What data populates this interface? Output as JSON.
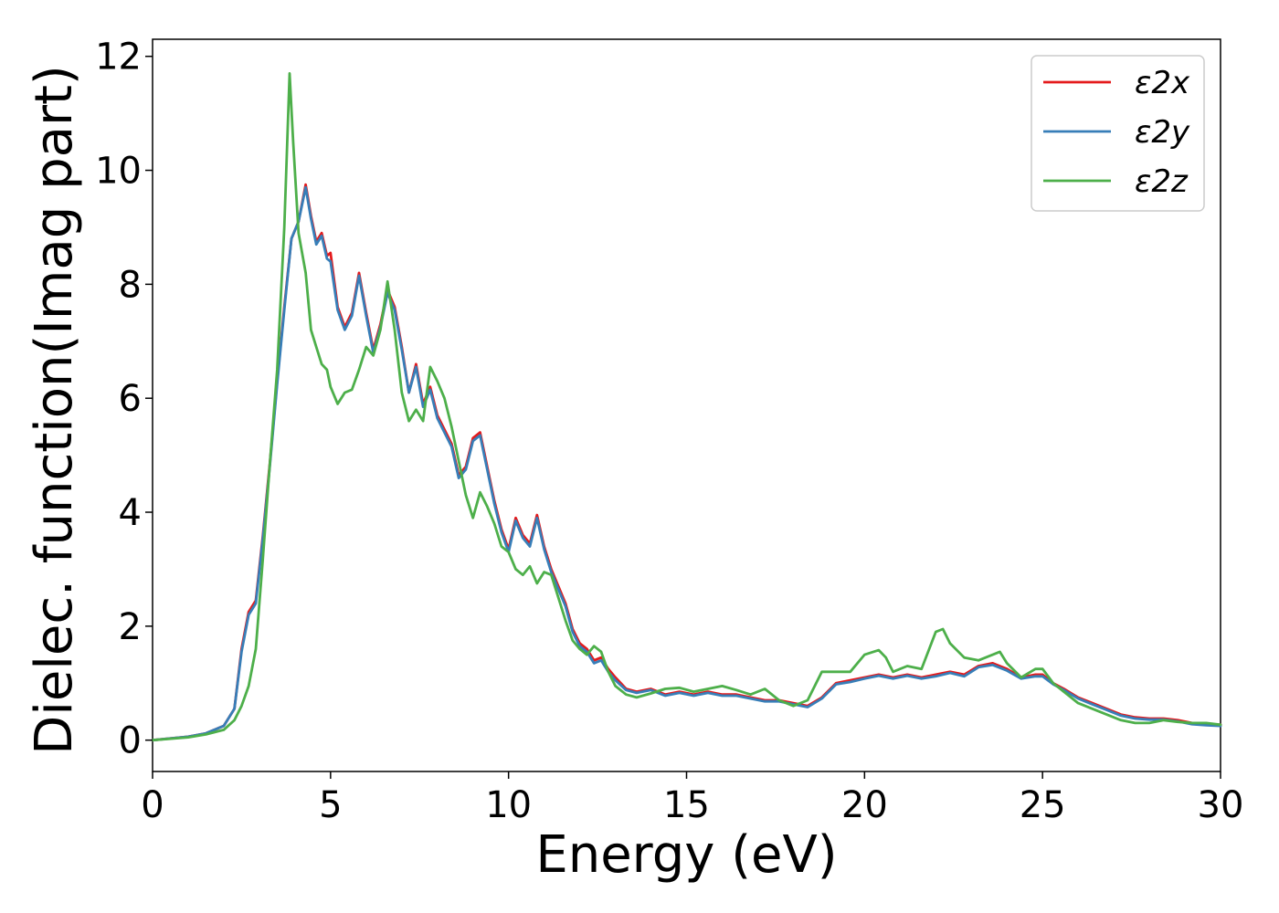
{
  "chart_data": {
    "type": "line",
    "xlabel": "Energy (eV)",
    "ylabel": "Dielec. function(Imag part)",
    "xlim": [
      0,
      30
    ],
    "ylim": [
      -0.55,
      12.3
    ],
    "xticks": [
      0,
      5,
      10,
      15,
      20,
      25,
      30
    ],
    "yticks": [
      0,
      2,
      4,
      6,
      8,
      10,
      12
    ],
    "legend_position": "top-right",
    "grid": false,
    "series": [
      {
        "name": "ε2x",
        "color": "#e41a1c",
        "x": [
          0,
          1,
          1.5,
          2,
          2.3,
          2.5,
          2.7,
          2.9,
          3.1,
          3.3,
          3.5,
          3.7,
          3.9,
          4.1,
          4.3,
          4.45,
          4.6,
          4.75,
          4.9,
          5.0,
          5.2,
          5.4,
          5.6,
          5.8,
          6.0,
          6.2,
          6.4,
          6.6,
          6.8,
          7.0,
          7.2,
          7.4,
          7.6,
          7.8,
          8.0,
          8.2,
          8.4,
          8.6,
          8.8,
          9.0,
          9.2,
          9.4,
          9.6,
          9.8,
          10.0,
          10.2,
          10.4,
          10.6,
          10.8,
          11.0,
          11.2,
          11.4,
          11.6,
          11.8,
          12.0,
          12.2,
          12.4,
          12.6,
          12.8,
          13.0,
          13.3,
          13.6,
          14.0,
          14.4,
          14.8,
          15.2,
          15.6,
          16.0,
          16.4,
          16.8,
          17.2,
          17.6,
          18.0,
          18.4,
          18.8,
          19.2,
          19.6,
          20.0,
          20.4,
          20.8,
          21.2,
          21.6,
          22.0,
          22.4,
          22.8,
          23.2,
          23.6,
          24.0,
          24.4,
          24.8,
          25.0,
          25.3,
          25.6,
          26.0,
          26.4,
          26.8,
          27.2,
          27.6,
          28.0,
          28.4,
          28.8,
          29.2,
          29.6,
          30
        ],
        "values": [
          0,
          0.06,
          0.12,
          0.25,
          0.55,
          1.6,
          2.25,
          2.45,
          3.6,
          4.9,
          6.3,
          7.6,
          8.8,
          9.1,
          9.75,
          9.2,
          8.75,
          8.9,
          8.5,
          8.55,
          7.6,
          7.25,
          7.5,
          8.2,
          7.5,
          6.85,
          7.3,
          7.9,
          7.6,
          6.9,
          6.1,
          6.6,
          5.9,
          6.2,
          5.7,
          5.45,
          5.2,
          4.65,
          4.8,
          5.3,
          5.4,
          4.8,
          4.2,
          3.7,
          3.35,
          3.9,
          3.6,
          3.45,
          3.95,
          3.4,
          3.0,
          2.7,
          2.4,
          1.95,
          1.7,
          1.6,
          1.4,
          1.45,
          1.25,
          1.1,
          0.9,
          0.85,
          0.9,
          0.8,
          0.85,
          0.8,
          0.85,
          0.8,
          0.8,
          0.75,
          0.7,
          0.7,
          0.65,
          0.6,
          0.75,
          1.0,
          1.05,
          1.1,
          1.15,
          1.1,
          1.15,
          1.1,
          1.15,
          1.2,
          1.15,
          1.3,
          1.35,
          1.25,
          1.1,
          1.15,
          1.15,
          1.0,
          0.9,
          0.75,
          0.65,
          0.55,
          0.45,
          0.4,
          0.38,
          0.38,
          0.35,
          0.3,
          0.28,
          0.27
        ]
      },
      {
        "name": "ε2y",
        "color": "#377eb8",
        "x": [
          0,
          1,
          1.5,
          2,
          2.3,
          2.5,
          2.7,
          2.9,
          3.1,
          3.3,
          3.5,
          3.7,
          3.9,
          4.1,
          4.3,
          4.45,
          4.6,
          4.75,
          4.9,
          5.0,
          5.2,
          5.4,
          5.6,
          5.8,
          6.0,
          6.2,
          6.4,
          6.6,
          6.8,
          7.0,
          7.2,
          7.4,
          7.6,
          7.8,
          8.0,
          8.2,
          8.4,
          8.6,
          8.8,
          9.0,
          9.2,
          9.4,
          9.6,
          9.8,
          10.0,
          10.2,
          10.4,
          10.6,
          10.8,
          11.0,
          11.2,
          11.4,
          11.6,
          11.8,
          12.0,
          12.2,
          12.4,
          12.6,
          12.8,
          13.0,
          13.3,
          13.6,
          14.0,
          14.4,
          14.8,
          15.2,
          15.6,
          16.0,
          16.4,
          16.8,
          17.2,
          17.6,
          18.0,
          18.4,
          18.8,
          19.2,
          19.6,
          20.0,
          20.4,
          20.8,
          21.2,
          21.6,
          22.0,
          22.4,
          22.8,
          23.2,
          23.6,
          24.0,
          24.4,
          24.8,
          25.0,
          25.3,
          25.6,
          26.0,
          26.4,
          26.8,
          27.2,
          27.6,
          28.0,
          28.4,
          28.8,
          29.2,
          29.6,
          30
        ],
        "values": [
          0,
          0.06,
          0.12,
          0.25,
          0.55,
          1.55,
          2.2,
          2.4,
          3.55,
          4.85,
          6.25,
          7.55,
          8.8,
          9.1,
          9.7,
          9.15,
          8.7,
          8.85,
          8.45,
          8.4,
          7.55,
          7.2,
          7.45,
          8.15,
          7.45,
          6.8,
          7.25,
          7.85,
          7.55,
          6.85,
          6.1,
          6.55,
          5.85,
          6.15,
          5.65,
          5.4,
          5.15,
          4.6,
          4.75,
          5.25,
          5.35,
          4.75,
          4.15,
          3.65,
          3.3,
          3.85,
          3.55,
          3.4,
          3.9,
          3.35,
          2.95,
          2.65,
          2.35,
          1.9,
          1.65,
          1.55,
          1.35,
          1.4,
          1.2,
          1.05,
          0.88,
          0.83,
          0.88,
          0.78,
          0.83,
          0.78,
          0.83,
          0.78,
          0.78,
          0.73,
          0.68,
          0.68,
          0.63,
          0.58,
          0.73,
          0.98,
          1.02,
          1.08,
          1.13,
          1.08,
          1.13,
          1.08,
          1.12,
          1.18,
          1.12,
          1.28,
          1.32,
          1.22,
          1.08,
          1.12,
          1.12,
          0.98,
          0.88,
          0.73,
          0.63,
          0.53,
          0.43,
          0.38,
          0.36,
          0.36,
          0.33,
          0.28,
          0.26,
          0.25
        ]
      },
      {
        "name": "ε2z",
        "color": "#4daf4a",
        "x": [
          0,
          1,
          1.5,
          2,
          2.3,
          2.5,
          2.7,
          2.9,
          3.1,
          3.3,
          3.5,
          3.7,
          3.85,
          3.95,
          4.1,
          4.3,
          4.45,
          4.6,
          4.75,
          4.9,
          5.0,
          5.2,
          5.4,
          5.6,
          5.8,
          6.0,
          6.2,
          6.4,
          6.6,
          6.8,
          7.0,
          7.2,
          7.4,
          7.6,
          7.8,
          8.0,
          8.2,
          8.4,
          8.6,
          8.8,
          9.0,
          9.2,
          9.4,
          9.6,
          9.8,
          10.0,
          10.2,
          10.4,
          10.6,
          10.8,
          11.0,
          11.2,
          11.4,
          11.6,
          11.8,
          12.0,
          12.2,
          12.4,
          12.6,
          12.8,
          13.0,
          13.3,
          13.6,
          14.0,
          14.4,
          14.8,
          15.2,
          15.6,
          16.0,
          16.4,
          16.8,
          17.2,
          17.6,
          18.0,
          18.4,
          18.8,
          19.2,
          19.6,
          20.0,
          20.4,
          20.6,
          20.8,
          21.2,
          21.6,
          22.0,
          22.2,
          22.4,
          22.8,
          23.2,
          23.6,
          23.8,
          24.0,
          24.4,
          24.8,
          25.0,
          25.3,
          25.6,
          26.0,
          26.4,
          26.8,
          27.2,
          27.6,
          28.0,
          28.4,
          28.8,
          29.2,
          29.6,
          30
        ],
        "values": [
          0,
          0.05,
          0.1,
          0.18,
          0.35,
          0.6,
          0.95,
          1.6,
          3.2,
          4.9,
          6.5,
          9.0,
          11.7,
          10.5,
          8.9,
          8.2,
          7.2,
          6.9,
          6.6,
          6.5,
          6.2,
          5.9,
          6.1,
          6.15,
          6.5,
          6.9,
          6.75,
          7.2,
          8.05,
          7.2,
          6.1,
          5.6,
          5.8,
          5.6,
          6.55,
          6.3,
          6.0,
          5.5,
          4.9,
          4.3,
          3.9,
          4.35,
          4.1,
          3.8,
          3.4,
          3.3,
          3.0,
          2.9,
          3.05,
          2.75,
          2.95,
          2.9,
          2.5,
          2.1,
          1.75,
          1.6,
          1.5,
          1.65,
          1.55,
          1.2,
          0.95,
          0.8,
          0.75,
          0.82,
          0.9,
          0.92,
          0.85,
          0.9,
          0.95,
          0.88,
          0.8,
          0.9,
          0.7,
          0.6,
          0.7,
          1.2,
          1.2,
          1.2,
          1.5,
          1.58,
          1.45,
          1.2,
          1.3,
          1.25,
          1.9,
          1.95,
          1.7,
          1.45,
          1.4,
          1.5,
          1.55,
          1.35,
          1.1,
          1.25,
          1.25,
          1.0,
          0.85,
          0.65,
          0.55,
          0.45,
          0.35,
          0.3,
          0.3,
          0.35,
          0.32,
          0.3,
          0.3,
          0.27
        ]
      }
    ]
  }
}
